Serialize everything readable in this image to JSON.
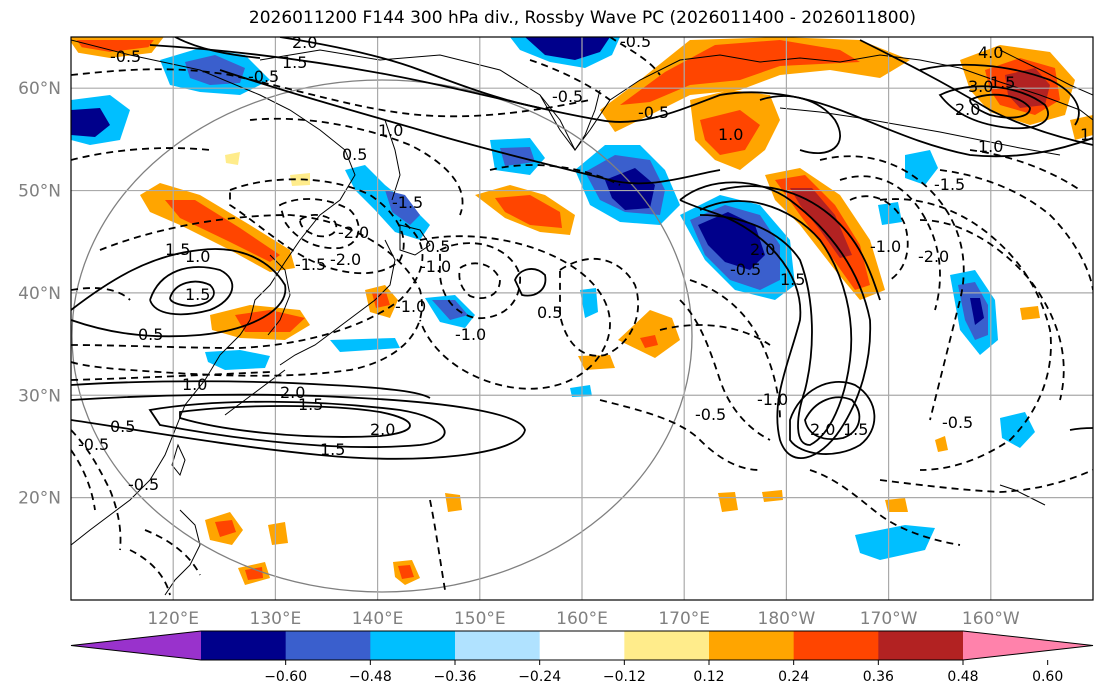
{
  "title": "2026011200 F144 300 hPa div., Rossby Wave PC (2026011400 - 2026011800)",
  "lat_labels": [
    "60°N",
    "50°N",
    "40°N",
    "30°N",
    "20°N"
  ],
  "lat_values": [
    60,
    50,
    40,
    30,
    20
  ],
  "lon_labels": [
    "120°E",
    "130°E",
    "140°E",
    "150°E",
    "160°E",
    "170°E",
    "180°W",
    "170°W",
    "160°W"
  ],
  "lon_values": [
    120,
    130,
    140,
    150,
    160,
    170,
    180,
    190,
    200
  ],
  "map_extent": {
    "lon_min": 110,
    "lon_max": 210,
    "lat_min": 10,
    "lat_max": 65
  },
  "colorbar": {
    "ticks": [
      "−0.60",
      "−0.48",
      "−0.36",
      "−0.24",
      "−0.12",
      "0.12",
      "0.24",
      "0.36",
      "0.48",
      "0.60"
    ],
    "colors": [
      "#9932cc",
      "#00008b",
      "#3a5fcd",
      "#00bfff",
      "#b0e2ff",
      "#ffffff",
      "#ffec8b",
      "#ffa500",
      "#ff4500",
      "#b22222",
      "#ff82ab"
    ]
  },
  "contour_labels": [
    "2.0",
    "1.5",
    "-0.5",
    "1.0",
    "0.5",
    "-2.0",
    "-1.5",
    "-1.0",
    "3.0",
    "4.0",
    "-0.5",
    "2.0",
    "1.5",
    "1.0",
    "-2.0",
    "-1.0",
    "-1.5",
    "-0.5",
    "2.0",
    "1.5",
    "-0.5",
    "-0.5",
    "0.5",
    "1.0",
    "-1.0",
    "1.5",
    "0.5",
    "1.5",
    "-0.5",
    "2.0",
    "1.5",
    "-0.5",
    "2.0",
    "1.5",
    "-1.0",
    "-0.5",
    "2.0",
    "1.5",
    "-0.5",
    "-0.5",
    "0.5",
    "1.0",
    "-1.0",
    "1.5",
    "-1.5",
    "-2.0",
    "1.0",
    "0.5"
  ]
}
